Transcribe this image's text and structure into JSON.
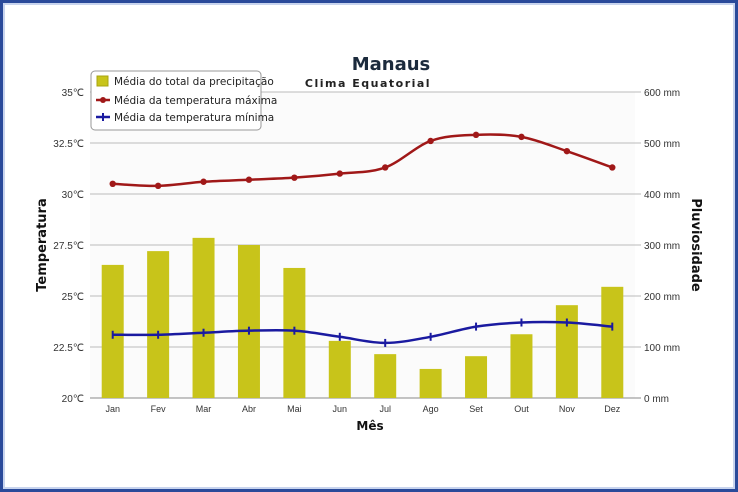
{
  "chart_data": {
    "type": "bar+line",
    "title": "Manaus",
    "subtitle": "Clima Equatorial",
    "xlabel": "Mês",
    "ylabel_left": "Temperatura",
    "ylabel_right": "Pluviosidade",
    "categories": [
      "Jan",
      "Fev",
      "Mar",
      "Abr",
      "Mai",
      "Jun",
      "Jul",
      "Ago",
      "Set",
      "Out",
      "Nov",
      "Dez"
    ],
    "ylim_left": [
      20,
      35
    ],
    "ylim_right": [
      0,
      600
    ],
    "left_ticks": [
      "20℃",
      "22.5℃",
      "25℃",
      "27.5℃",
      "30℃",
      "32.5℃",
      "35℃"
    ],
    "right_ticks": [
      "0 mm",
      "100 mm",
      "200 mm",
      "300 mm",
      "400 mm",
      "500 mm",
      "600 mm"
    ],
    "grid": true,
    "legend_position": "top-left",
    "series": [
      {
        "name": "Média do total da precipitação",
        "type": "bar",
        "axis": "right",
        "color": "#c8c41a",
        "values": [
          261,
          288,
          314,
          300,
          255,
          112,
          86,
          57,
          82,
          125,
          182,
          218
        ]
      },
      {
        "name": "Média da temperatura máxima",
        "type": "line",
        "axis": "left",
        "color": "#a01818",
        "values": [
          30.5,
          30.4,
          30.6,
          30.7,
          30.8,
          31.0,
          31.3,
          32.6,
          32.9,
          32.8,
          32.1,
          31.3
        ]
      },
      {
        "name": "Média da temperatura mínima",
        "type": "line",
        "axis": "left",
        "color": "#1a1aa0",
        "values": [
          23.1,
          23.1,
          23.2,
          23.3,
          23.3,
          23.0,
          22.7,
          23.0,
          23.5,
          23.7,
          23.7,
          23.5
        ]
      }
    ]
  }
}
